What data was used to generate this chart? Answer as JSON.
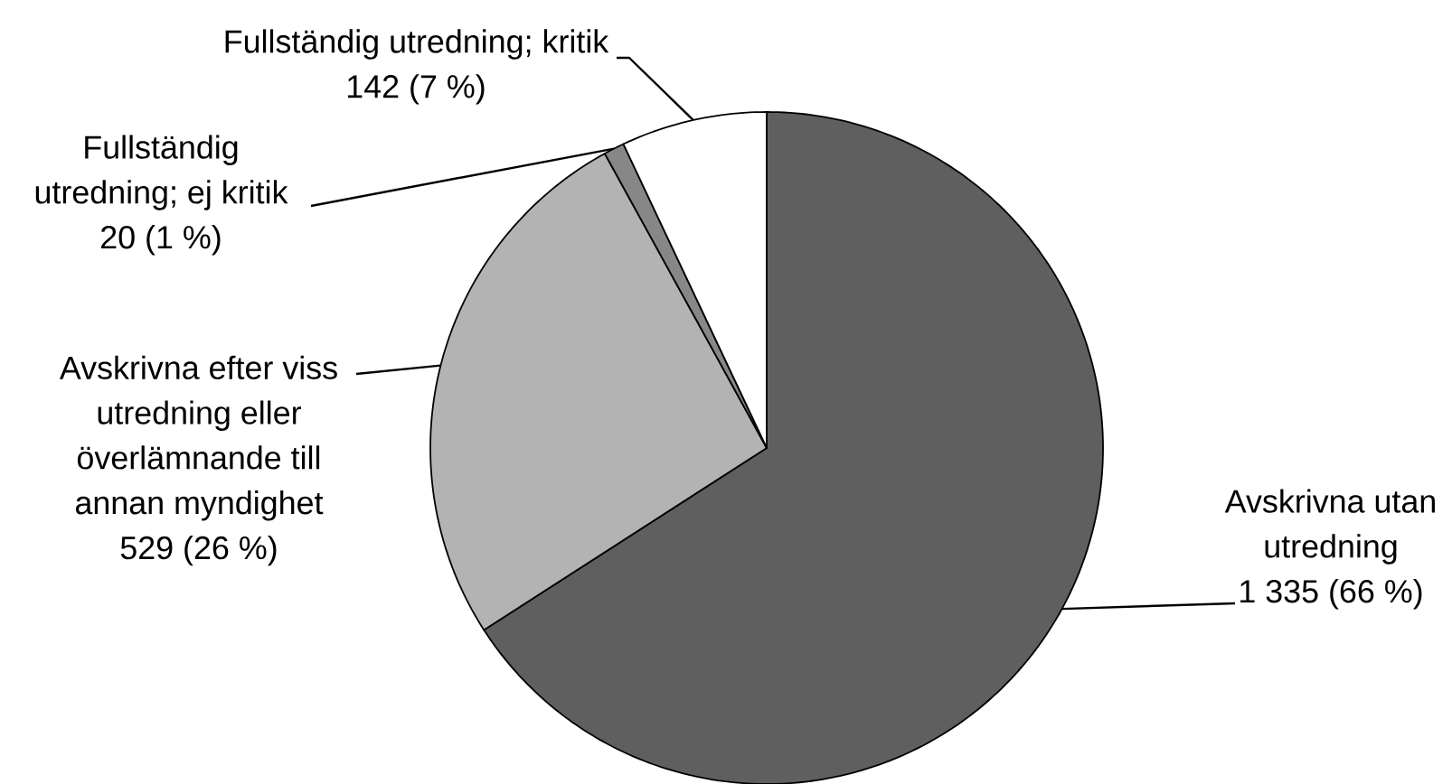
{
  "chart_data": {
    "type": "pie",
    "categories": [
      "Avskrivna utan utredning",
      "Avskrivna efter viss utredning eller överlämnande till annan myndighet",
      "Fullständig utredning; ej kritik",
      "Fullständig utredning; kritik"
    ],
    "values": [
      1335,
      529,
      20,
      142
    ],
    "value_labels": [
      "1 335 (66 %)",
      "529 (26 %)",
      "20 (1 %)",
      "142 (7 %)"
    ],
    "colors": [
      "#5f5f5f",
      "#b3b3b3",
      "#878787",
      "#ffffff"
    ]
  }
}
